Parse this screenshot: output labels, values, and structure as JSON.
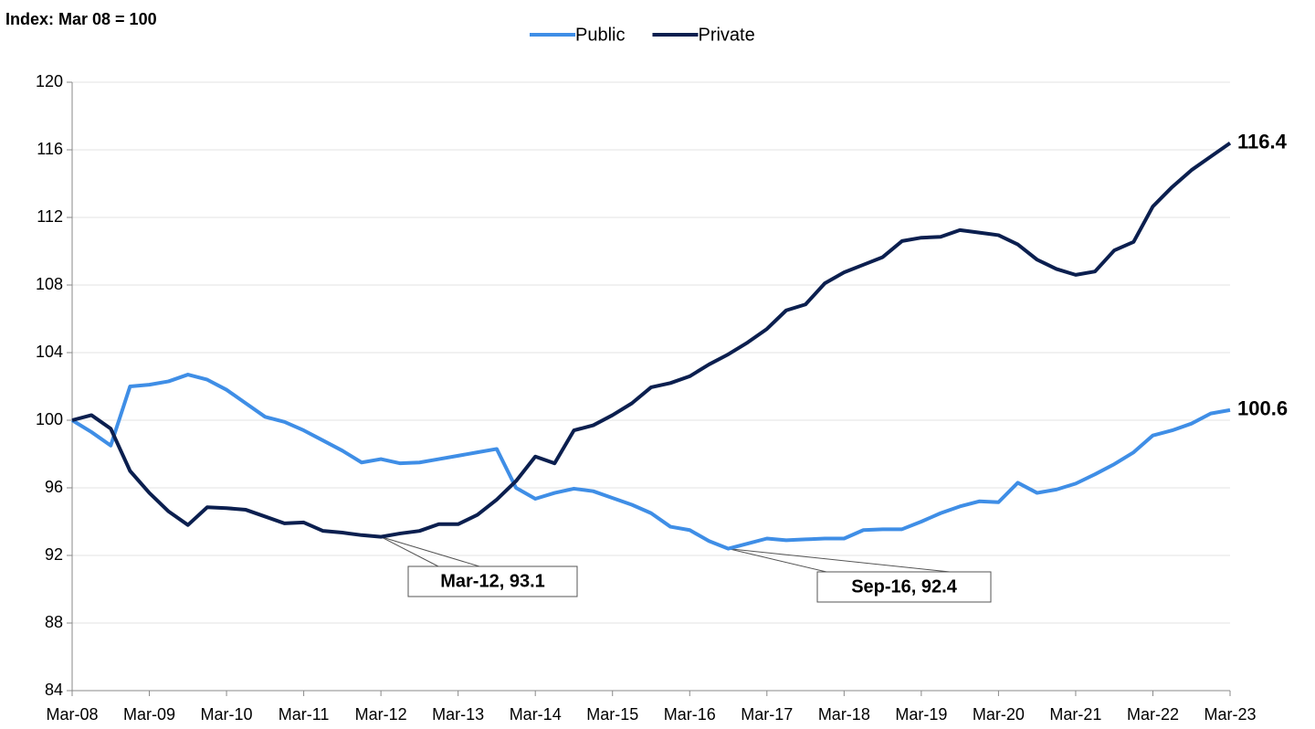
{
  "chart_data": {
    "type": "line",
    "y_label": "Index: Mar 08 = 100",
    "categories": [
      "Mar-08",
      null,
      null,
      null,
      "Mar-09",
      null,
      null,
      null,
      "Mar-10",
      null,
      null,
      null,
      "Mar-11",
      null,
      null,
      null,
      "Mar-12",
      null,
      null,
      null,
      "Mar-13",
      null,
      null,
      null,
      "Mar-14",
      null,
      null,
      null,
      "Mar-15",
      null,
      null,
      null,
      "Mar-16",
      null,
      null,
      null,
      "Mar-17",
      null,
      null,
      null,
      "Mar-18",
      null,
      null,
      null,
      "Mar-19",
      null,
      null,
      null,
      "Mar-20",
      null,
      null,
      null,
      "Mar-21",
      null,
      null,
      null,
      "Mar-22",
      null,
      null,
      null,
      "Mar-23"
    ],
    "series": [
      {
        "name": "Public",
        "color": "#3f8ee6",
        "values": [
          100,
          99.3,
          98.5,
          102.0,
          102.1,
          102.3,
          102.7,
          102.4,
          101.8,
          101.0,
          100.2,
          99.9,
          99.4,
          98.8,
          98.2,
          97.5,
          97.7,
          97.45,
          97.5,
          97.7,
          97.9,
          98.1,
          98.3,
          96.0,
          95.35,
          95.7,
          95.95,
          95.8,
          95.4,
          95.0,
          94.5,
          93.7,
          93.5,
          92.85,
          92.4,
          92.7,
          93.0,
          92.9,
          92.95,
          93.0,
          93.0,
          93.5,
          93.55,
          93.55,
          94.0,
          94.5,
          94.9,
          95.2,
          95.15,
          96.3,
          95.7,
          95.9,
          96.25,
          96.8,
          97.4,
          98.1,
          99.1,
          99.4,
          99.8,
          100.4,
          100.6
        ]
      },
      {
        "name": "Private",
        "color": "#0b1f4f",
        "values": [
          100,
          100.3,
          99.5,
          97.0,
          95.7,
          94.6,
          93.8,
          94.85,
          94.8,
          94.7,
          94.3,
          93.9,
          93.95,
          93.45,
          93.35,
          93.2,
          93.1,
          93.3,
          93.45,
          93.85,
          93.85,
          94.4,
          95.3,
          96.4,
          97.85,
          97.45,
          99.4,
          99.7,
          100.3,
          101.0,
          101.95,
          102.2,
          102.6,
          103.3,
          103.9,
          104.6,
          105.4,
          106.5,
          106.85,
          108.1,
          108.75,
          109.2,
          109.65,
          110.6,
          110.8,
          110.85,
          111.25,
          111.1,
          110.95,
          110.4,
          109.5,
          108.95,
          108.6,
          108.8,
          110.05,
          110.55,
          112.65,
          113.8,
          114.8,
          115.6,
          116.4
        ]
      }
    ],
    "annotations": [
      {
        "text": "Mar-12, 93.1"
      },
      {
        "text": "Sep-16, 92.4"
      }
    ],
    "ylim": [
      84,
      120
    ],
    "yticks": [
      84,
      88,
      92,
      96,
      100,
      104,
      108,
      112,
      116,
      120
    ],
    "grid": true,
    "legend": "top"
  }
}
